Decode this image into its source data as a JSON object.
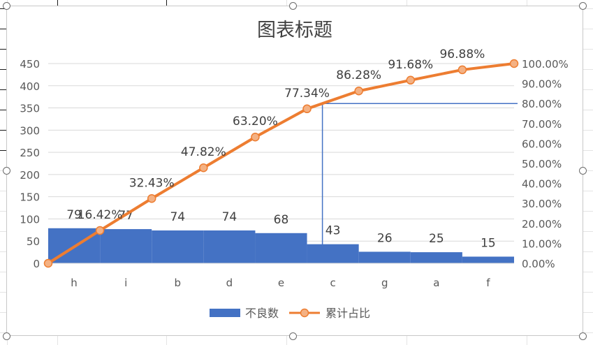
{
  "chart_data": {
    "type": "bar",
    "title": "图表标题",
    "categories": [
      "h",
      "i",
      "b",
      "d",
      "e",
      "c",
      "g",
      "a",
      "f"
    ],
    "series": [
      {
        "name": "不良数",
        "type": "bar",
        "axis": "left",
        "color": "#4472c4",
        "values": [
          79,
          77,
          74,
          74,
          68,
          43,
          26,
          25,
          15
        ],
        "data_labels": [
          "79",
          "77",
          "74",
          "74",
          "68",
          "43",
          "26",
          "25",
          "15"
        ]
      },
      {
        "name": "累计占比",
        "type": "line",
        "axis": "right",
        "color": "#ed7d31",
        "x": [
          "0",
          "h",
          "i",
          "b",
          "d",
          "e",
          "c",
          "g",
          "a",
          "f"
        ],
        "values": [
          0,
          16.42,
          32.43,
          47.82,
          63.2,
          77.34,
          86.28,
          91.68,
          96.88,
          100
        ],
        "data_labels": [
          "",
          "16.42%",
          "32.43%",
          "47.82%",
          "63.20%",
          "77.34%",
          "86.28%",
          "91.68%",
          "96.88%",
          ""
        ]
      }
    ],
    "y_left": {
      "ylim": [
        0,
        450
      ],
      "ticks": [
        "0",
        "50",
        "100",
        "150",
        "200",
        "250",
        "300",
        "350",
        "400",
        "450"
      ]
    },
    "y_right": {
      "ylim": [
        0,
        100
      ],
      "ticks": [
        "0.00%",
        "10.00%",
        "20.00%",
        "30.00%",
        "40.00%",
        "50.00%",
        "60.00%",
        "70.00%",
        "80.00%",
        "90.00%",
        "100.00%"
      ]
    },
    "reference_line": {
      "y_right_value": 80,
      "color": "#4472c4"
    },
    "grid": true,
    "legend": "bottom",
    "gridline_color": "#d9d9d9"
  }
}
